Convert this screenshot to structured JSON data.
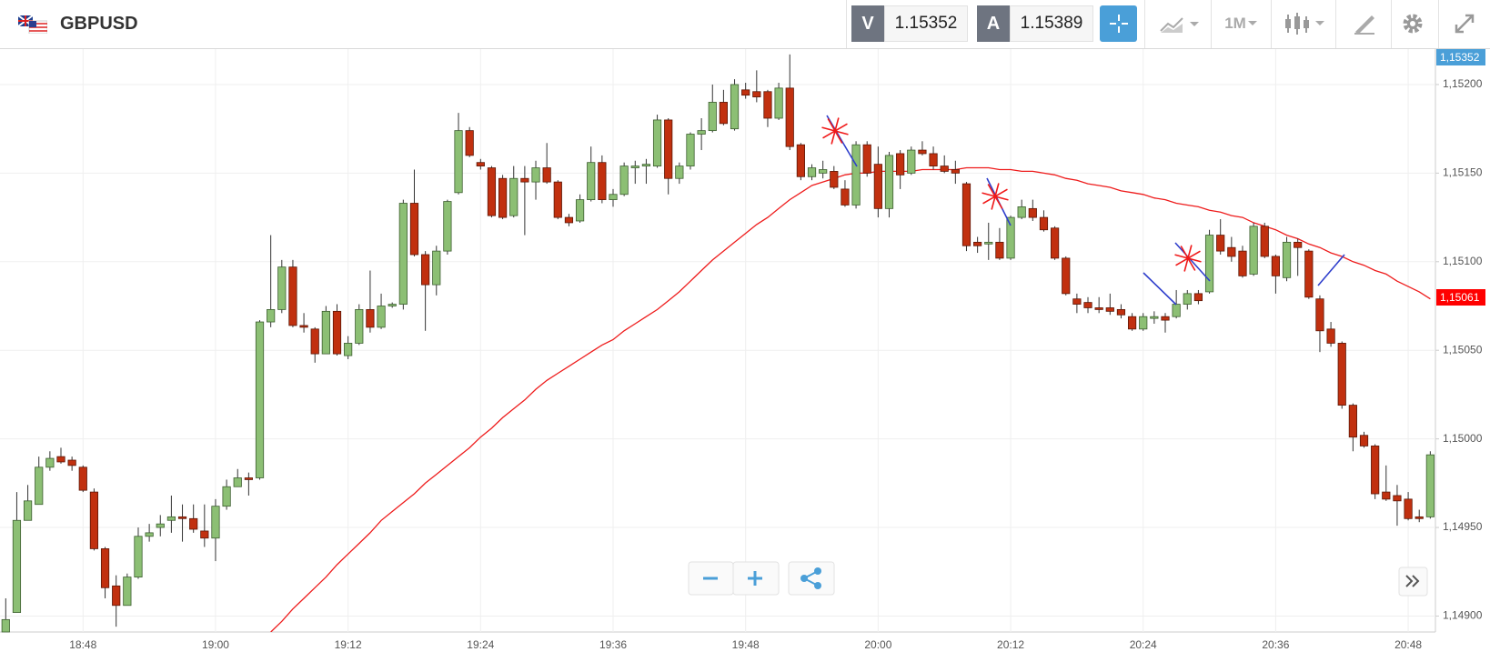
{
  "header": {
    "symbol": "GBPUSD",
    "sell_label": "V",
    "sell_price": "1.15352",
    "buy_label": "A",
    "buy_price": "1.15389",
    "timeframe": "1M"
  },
  "chart_data": {
    "type": "candlestick",
    "up_color": "#8cbf74",
    "down_color": "#c1300f",
    "categories": [
      null,
      null,
      null,
      null,
      null,
      null,
      null,
      "18:48",
      null,
      null,
      null,
      null,
      null,
      null,
      null,
      null,
      null,
      null,
      null,
      "19:00",
      null,
      null,
      null,
      null,
      null,
      null,
      null,
      null,
      null,
      null,
      null,
      "19:12",
      null,
      null,
      null,
      null,
      null,
      null,
      null,
      null,
      null,
      null,
      null,
      "19:24",
      null,
      null,
      null,
      null,
      null,
      null,
      null,
      null,
      null,
      null,
      null,
      "19:36",
      null,
      null,
      null,
      null,
      null,
      null,
      null,
      null,
      null,
      null,
      null,
      "19:48",
      null,
      null,
      null,
      null,
      null,
      null,
      null,
      null,
      null,
      null,
      null,
      "20:00",
      null,
      null,
      null,
      null,
      null,
      null,
      null,
      null,
      null,
      null,
      null,
      "20:12",
      null,
      null,
      null,
      null,
      null,
      null,
      null,
      null,
      null,
      null,
      null,
      "20:24",
      null,
      null,
      null,
      null,
      null,
      null,
      null,
      null,
      null,
      null,
      null,
      "20:36",
      null,
      null,
      null,
      null,
      null,
      null,
      null,
      null,
      null,
      null,
      null,
      "20:48",
      null,
      null
    ],
    "open": [
      1.14891,
      1.14902,
      1.14954,
      1.14963,
      1.14984,
      1.1499,
      1.14988,
      1.14984,
      1.1497,
      1.14938,
      1.14917,
      1.14906,
      1.14922,
      1.14945,
      1.1495,
      1.14954,
      1.14956,
      1.14955,
      1.14948,
      1.14944,
      1.14962,
      1.14973,
      1.14978,
      1.14978,
      1.15066,
      1.15073,
      1.15097,
      1.15064,
      1.15062,
      1.15048,
      1.15072,
      1.15047,
      1.15054,
      1.15073,
      1.15063,
      1.15075,
      1.15076,
      1.15133,
      1.15104,
      1.15087,
      1.15106,
      1.15139,
      1.15174,
      1.15156,
      1.15153,
      1.15147,
      1.15126,
      1.15147,
      1.15145,
      1.15153,
      1.15145,
      1.15125,
      1.15123,
      1.15135,
      1.15156,
      1.15135,
      1.15138,
      1.15153,
      1.15154,
      1.15154,
      1.1518,
      1.15147,
      1.15154,
      1.15172,
      1.15174,
      1.1519,
      1.15175,
      1.15197,
      1.15196,
      1.15196,
      1.15181,
      1.15198,
      1.15166,
      1.15148,
      1.1515,
      1.15151,
      1.15141,
      1.15132,
      1.15166,
      1.15155,
      1.1513,
      1.15161,
      1.1515,
      1.15163,
      1.15161,
      1.15154,
      1.15152,
      1.15144,
      1.15111,
      1.1511,
      1.15111,
      1.15102,
      1.15125,
      1.1513,
      1.15125,
      1.15119,
      1.15102,
      1.15079,
      1.15077,
      1.15074,
      1.15074,
      1.15073,
      1.15069,
      1.15062,
      1.15068,
      1.15069,
      1.15069,
      1.15076,
      1.15082,
      1.15083,
      1.15115,
      1.15108,
      1.15106,
      1.15093,
      1.1512,
      1.15103,
      1.15091,
      1.15111,
      1.15106,
      1.15079,
      1.15062,
      1.15054,
      1.15019,
      1.15002,
      1.14996,
      1.1497,
      1.14968,
      1.14966,
      1.14956,
      1.14956
    ],
    "high": [
      1.1491,
      1.1497,
      1.14974,
      1.1499,
      1.14993,
      1.14995,
      1.1499,
      1.14985,
      1.14972,
      1.14939,
      1.14923,
      1.14924,
      1.1495,
      1.14952,
      1.14957,
      1.14968,
      1.14963,
      1.14963,
      1.14963,
      1.14966,
      1.14977,
      1.14983,
      1.14981,
      1.15067,
      1.15115,
      1.15101,
      1.15101,
      1.15071,
      1.15063,
      1.15075,
      1.15076,
      1.15058,
      1.15076,
      1.15095,
      1.15082,
      1.15077,
      1.15135,
      1.15152,
      1.15106,
      1.15109,
      1.15135,
      1.15184,
      1.15176,
      1.15158,
      1.15154,
      1.15149,
      1.15154,
      1.15154,
      1.15157,
      1.15167,
      1.15146,
      1.15127,
      1.15138,
      1.15165,
      1.1516,
      1.15141,
      1.15156,
      1.15157,
      1.15158,
      1.15183,
      1.15181,
      1.15156,
      1.15173,
      1.15181,
      1.152,
      1.15197,
      1.15203,
      1.15201,
      1.15208,
      1.15197,
      1.15201,
      1.15217,
      1.15167,
      1.15155,
      1.15157,
      1.15154,
      1.15146,
      1.15168,
      1.15168,
      1.15165,
      1.15162,
      1.15163,
      1.15165,
      1.15168,
      1.15165,
      1.1516,
      1.15157,
      1.15145,
      1.15114,
      1.15122,
      1.15119,
      1.15126,
      1.15135,
      1.15135,
      1.15129,
      1.1512,
      1.15103,
      1.15082,
      1.1508,
      1.1508,
      1.15082,
      1.15076,
      1.15071,
      1.15071,
      1.15072,
      1.15071,
      1.15084,
      1.15084,
      1.15084,
      1.15118,
      1.15124,
      1.15114,
      1.15109,
      1.15122,
      1.15122,
      1.15104,
      1.15114,
      1.15113,
      1.15107,
      1.15081,
      1.15066,
      1.15055,
      1.1502,
      1.15004,
      1.14997,
      1.14985,
      1.14974,
      1.1497,
      1.1496,
      1.14993
    ],
    "low": [
      1.14891,
      1.14902,
      1.14954,
      1.14963,
      1.14982,
      1.14986,
      1.14982,
      1.1497,
      1.14937,
      1.1491,
      1.14894,
      1.14906,
      1.14921,
      1.14942,
      1.14945,
      1.14947,
      1.14942,
      1.14947,
      1.14939,
      1.14931,
      1.1496,
      1.14973,
      1.14968,
      1.14977,
      1.15063,
      1.15071,
      1.15063,
      1.1506,
      1.15043,
      1.15048,
      1.15047,
      1.15045,
      1.15053,
      1.1506,
      1.15062,
      1.15074,
      1.15073,
      1.15103,
      1.15061,
      1.15081,
      1.15104,
      1.15138,
      1.15159,
      1.15152,
      1.15125,
      1.15124,
      1.15125,
      1.15115,
      1.15135,
      1.15144,
      1.15124,
      1.1512,
      1.15122,
      1.15134,
      1.15133,
      1.15131,
      1.15137,
      1.15144,
      1.15144,
      1.15153,
      1.15138,
      1.15144,
      1.15152,
      1.15163,
      1.15173,
      1.15177,
      1.15174,
      1.15192,
      1.1519,
      1.15176,
      1.1518,
      1.15163,
      1.15146,
      1.15146,
      1.15147,
      1.15141,
      1.15131,
      1.1513,
      1.15148,
      1.15125,
      1.15125,
      1.15141,
      1.15149,
      1.1516,
      1.15152,
      1.1515,
      1.15144,
      1.15106,
      1.15105,
      1.15101,
      1.15101,
      1.15101,
      1.15124,
      1.15123,
      1.15117,
      1.15101,
      1.15081,
      1.15071,
      1.15071,
      1.15071,
      1.1507,
      1.15068,
      1.15061,
      1.15061,
      1.15065,
      1.1506,
      1.15068,
      1.15073,
      1.15076,
      1.15082,
      1.15104,
      1.151,
      1.15091,
      1.15092,
      1.15102,
      1.15082,
      1.15089,
      1.15092,
      1.15079,
      1.15049,
      1.15052,
      1.15017,
      1.14993,
      1.14995,
      1.14966,
      1.14965,
      1.14951,
      1.14954,
      1.14953,
      1.14955
    ],
    "close": [
      1.14898,
      1.14954,
      1.14965,
      1.14984,
      1.14989,
      1.14987,
      1.14985,
      1.14971,
      1.14938,
      1.14916,
      1.14906,
      1.14922,
      1.14945,
      1.14947,
      1.14952,
      1.14956,
      1.14955,
      1.14949,
      1.14944,
      1.14962,
      1.14973,
      1.14978,
      1.14977,
      1.15066,
      1.15073,
      1.15097,
      1.15064,
      1.15063,
      1.15048,
      1.15072,
      1.15048,
      1.15054,
      1.15073,
      1.15063,
      1.15075,
      1.15076,
      1.15133,
      1.15104,
      1.15087,
      1.15106,
      1.15134,
      1.15174,
      1.1516,
      1.15154,
      1.15126,
      1.15125,
      1.15147,
      1.15145,
      1.15153,
      1.15145,
      1.15125,
      1.15122,
      1.15135,
      1.15156,
      1.15135,
      1.15138,
      1.15154,
      1.15154,
      1.15155,
      1.1518,
      1.15147,
      1.15154,
      1.15172,
      1.15174,
      1.1519,
      1.15178,
      1.152,
      1.15194,
      1.15193,
      1.15181,
      1.15198,
      1.15165,
      1.15148,
      1.15153,
      1.15152,
      1.15142,
      1.15132,
      1.15166,
      1.1515,
      1.1513,
      1.1516,
      1.15149,
      1.15163,
      1.15161,
      1.15154,
      1.15151,
      1.1515,
      1.15109,
      1.15109,
      1.15111,
      1.15102,
      1.15125,
      1.15131,
      1.15125,
      1.15118,
      1.15102,
      1.15082,
      1.15076,
      1.15074,
      1.15073,
      1.15072,
      1.1507,
      1.15062,
      1.15069,
      1.15069,
      1.15067,
      1.15076,
      1.15082,
      1.15078,
      1.15115,
      1.15106,
      1.15103,
      1.15092,
      1.1512,
      1.15103,
      1.15092,
      1.15111,
      1.15108,
      1.1508,
      1.15061,
      1.15054,
      1.15019,
      1.15001,
      1.14996,
      1.14969,
      1.14966,
      1.14965,
      1.14955,
      1.14955,
      1.14991
    ],
    "series": [
      {
        "color": "#ee1c1c",
        "values": [
          null,
          null,
          null,
          null,
          null,
          null,
          null,
          null,
          null,
          null,
          null,
          null,
          null,
          null,
          null,
          null,
          null,
          null,
          null,
          null,
          null,
          null,
          null,
          null,
          1.14891,
          1.14897,
          1.14904,
          1.1491,
          1.14916,
          1.14922,
          1.14929,
          1.14935,
          1.14941,
          1.14947,
          1.14954,
          1.14959,
          1.14964,
          1.14969,
          1.14975,
          1.1498,
          1.14985,
          1.1499,
          1.14995,
          1.15001,
          1.15006,
          1.15012,
          1.15017,
          1.15022,
          1.15028,
          1.15033,
          1.15037,
          1.15041,
          1.15045,
          1.15049,
          1.15053,
          1.15056,
          1.15061,
          1.15065,
          1.15069,
          1.15073,
          1.15078,
          1.15083,
          1.15089,
          1.15095,
          1.15101,
          1.15106,
          1.15111,
          1.15116,
          1.15121,
          1.15125,
          1.1513,
          1.15135,
          1.15139,
          1.15143,
          1.15145,
          1.15147,
          1.15149,
          1.1515,
          1.1515,
          1.15151,
          1.15151,
          1.15151,
          1.15151,
          1.15152,
          1.15152,
          1.15152,
          1.15152,
          1.15153,
          1.15153,
          1.15153,
          1.15152,
          1.15152,
          1.15151,
          1.15151,
          1.1515,
          1.15149,
          1.15147,
          1.15146,
          1.15144,
          1.15143,
          1.15142,
          1.1514,
          1.15139,
          1.15138,
          1.15136,
          1.15135,
          1.15133,
          1.15132,
          1.15131,
          1.15129,
          1.15128,
          1.15126,
          1.15125,
          1.15122,
          1.1512,
          1.15118,
          1.15115,
          1.15113,
          1.1511,
          1.15108,
          1.15105,
          1.15103,
          1.151,
          1.15098,
          1.15095,
          1.15093,
          1.15089,
          1.15086,
          1.15083,
          1.15079
        ]
      }
    ],
    "ylim": [
      1.14891,
      1.1522
    ],
    "yticks": [
      {
        "value": 1.149,
        "label": "1,14900"
      },
      {
        "value": 1.1495,
        "label": "1,14950"
      },
      {
        "value": 1.15,
        "label": "1,15000"
      },
      {
        "value": 1.1505,
        "label": "1,15050"
      },
      {
        "value": 1.151,
        "label": "1,15100"
      },
      {
        "value": 1.1515,
        "label": "1,15150"
      },
      {
        "value": 1.152,
        "label": "1,15200"
      }
    ],
    "price_tags": [
      {
        "label": "1,15352",
        "color": "#4a9fd8"
      },
      {
        "label": "1,15061",
        "color": "#ff0000"
      }
    ],
    "grid": true
  }
}
